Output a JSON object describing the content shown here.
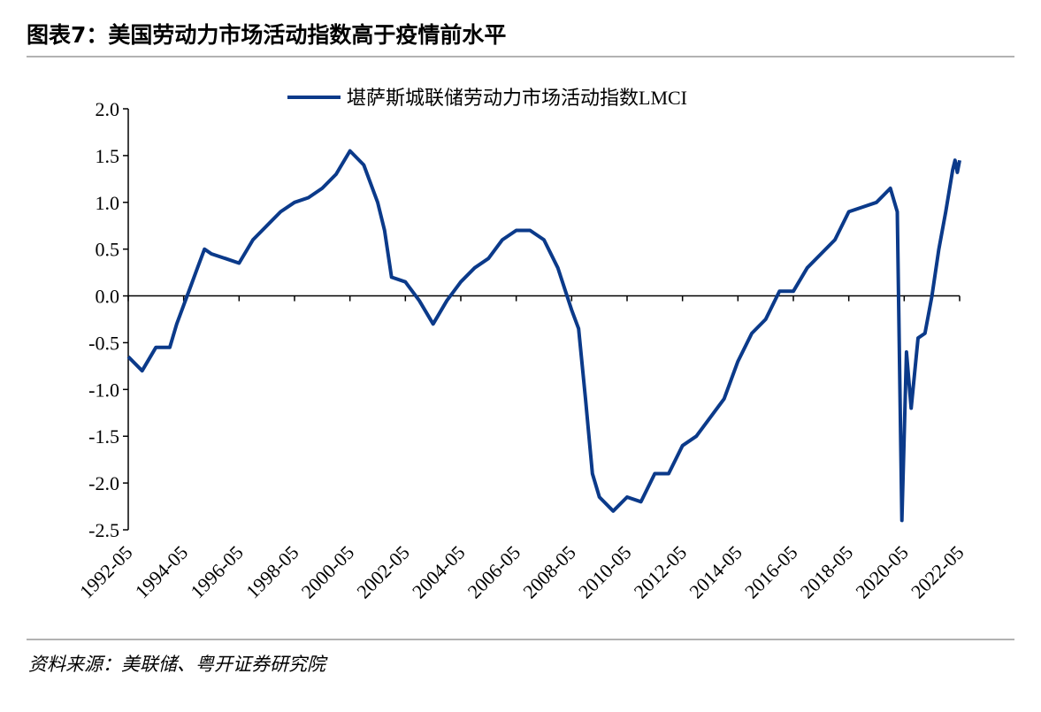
{
  "chart_data": {
    "type": "line",
    "title": "图表7：美国劳动力市场活动指数高于疫情前水平",
    "source": "资料来源：美联储、粤开证券研究院",
    "x": [
      "1992-05",
      "1992-11",
      "1993-05",
      "1993-11",
      "1994-02",
      "1994-08",
      "1994-11",
      "1995-02",
      "1995-05",
      "1995-11",
      "1996-05",
      "1996-11",
      "1997-05",
      "1997-11",
      "1998-05",
      "1998-11",
      "1999-05",
      "1999-11",
      "2000-05",
      "2000-11",
      "2001-05",
      "2001-08",
      "2001-11",
      "2002-05",
      "2002-11",
      "2003-05",
      "2003-11",
      "2004-05",
      "2004-11",
      "2005-05",
      "2005-11",
      "2006-05",
      "2006-11",
      "2007-05",
      "2007-11",
      "2008-05",
      "2008-08",
      "2008-11",
      "2009-02",
      "2009-05",
      "2009-11",
      "2010-05",
      "2010-11",
      "2011-05",
      "2011-11",
      "2012-05",
      "2012-11",
      "2013-05",
      "2013-11",
      "2014-05",
      "2014-11",
      "2015-05",
      "2015-11",
      "2016-05",
      "2016-11",
      "2017-05",
      "2017-11",
      "2018-05",
      "2018-11",
      "2019-05",
      "2019-11",
      "2020-02",
      "2020-04",
      "2020-06",
      "2020-08",
      "2020-11",
      "2021-02",
      "2021-05",
      "2021-08",
      "2021-11",
      "2022-02",
      "2022-03",
      "2022-04",
      "2022-05"
    ],
    "series": [
      {
        "name": "堪萨斯城联储劳动力市场活动指数LMCI",
        "color": "#0b3a8a",
        "values": [
          -0.65,
          -0.8,
          -0.55,
          -0.55,
          -0.3,
          0.1,
          0.3,
          0.5,
          0.45,
          0.4,
          0.35,
          0.6,
          0.75,
          0.9,
          1.0,
          1.05,
          1.15,
          1.3,
          1.55,
          1.4,
          1.0,
          0.7,
          0.2,
          0.15,
          -0.05,
          -0.3,
          -0.05,
          0.15,
          0.3,
          0.4,
          0.6,
          0.7,
          0.7,
          0.6,
          0.3,
          -0.15,
          -0.35,
          -1.1,
          -1.9,
          -2.15,
          -2.3,
          -2.15,
          -2.2,
          -1.9,
          -1.9,
          -1.6,
          -1.5,
          -1.3,
          -1.1,
          -0.7,
          -0.4,
          -0.25,
          0.05,
          0.05,
          0.3,
          0.45,
          0.6,
          0.9,
          0.95,
          1.0,
          1.15,
          0.9,
          -2.4,
          -0.6,
          -1.2,
          -0.45,
          -0.4,
          0.0,
          0.5,
          0.9,
          1.35,
          1.45,
          1.32,
          1.45
        ]
      }
    ],
    "xlim": [
      "1992-05",
      "2022-05"
    ],
    "xticks": [
      "1992-05",
      "1994-05",
      "1996-05",
      "1998-05",
      "2000-05",
      "2002-05",
      "2004-05",
      "2006-05",
      "2008-05",
      "2010-05",
      "2012-05",
      "2014-05",
      "2016-05",
      "2018-05",
      "2020-05",
      "2022-05"
    ],
    "ylim": [
      -2.5,
      2.0
    ],
    "yticks": [
      {
        "value": 2.0,
        "label": "2.0"
      },
      {
        "value": 1.5,
        "label": "1.5"
      },
      {
        "value": 1.0,
        "label": "1.0"
      },
      {
        "value": 0.5,
        "label": "0.5"
      },
      {
        "value": 0.0,
        "label": "0.0"
      },
      {
        "value": -0.5,
        "label": "-0.5"
      },
      {
        "value": -1.0,
        "label": "-1.0"
      },
      {
        "value": -1.5,
        "label": "-1.5"
      },
      {
        "value": -2.0,
        "label": "-2.0"
      },
      {
        "value": -2.5,
        "label": "-2.5"
      }
    ]
  }
}
